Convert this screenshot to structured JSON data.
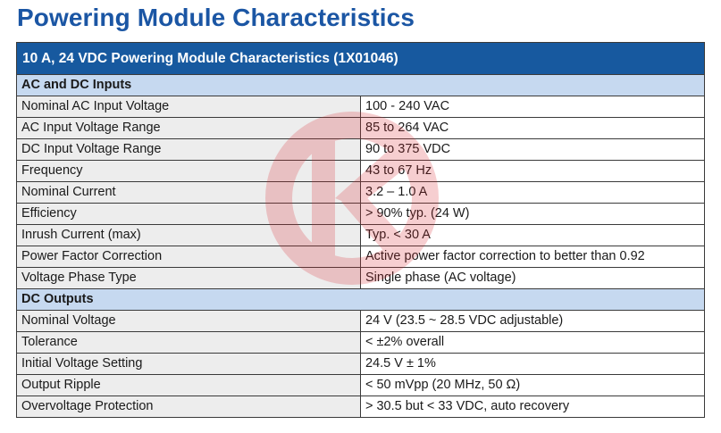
{
  "page_title": "Powering Module Characteristics",
  "table": {
    "title": "10 A, 24 VDC Powering Module Characteristics (1X01046)",
    "sections": [
      {
        "heading": "AC and DC Inputs",
        "rows": [
          {
            "parameter": "Nominal AC Input Voltage",
            "value": "100 - 240 VAC"
          },
          {
            "parameter": "AC Input Voltage Range",
            "value": "85 to 264 VAC"
          },
          {
            "parameter": "DC Input Voltage Range",
            "value": "90 to 375 VDC"
          },
          {
            "parameter": "Frequency",
            "value": "43 to 67 Hz"
          },
          {
            "parameter": "Nominal Current",
            "value": "3.2 – 1.0 A"
          },
          {
            "parameter": "Efficiency",
            "value": "> 90% typ. (24 W)"
          },
          {
            "parameter": "Inrush Current (max)",
            "value": "Typ. < 30 A"
          },
          {
            "parameter": "Power Factor Correction",
            "value": "Active power factor correction to better than 0.92"
          },
          {
            "parameter": "Voltage Phase Type",
            "value": "Single phase (AC voltage)"
          }
        ]
      },
      {
        "heading": "DC Outputs",
        "rows": [
          {
            "parameter": "Nominal Voltage",
            "value": "24 V (23.5 ~ 28.5 VDC adjustable)"
          },
          {
            "parameter": "Tolerance",
            "value": "< ±2% overall"
          },
          {
            "parameter": "Initial Voltage Setting",
            "value": "24.5 V ± 1%"
          },
          {
            "parameter": "Output Ripple",
            "value": "< 50 mVpp (20 MHz, 50 Ω)"
          },
          {
            "parameter": "Overvoltage Protection",
            "value": "> 30.5 but < 33 VDC, auto recovery"
          }
        ]
      }
    ]
  },
  "colors": {
    "title_blue": "#1b56a4",
    "header_bg": "#17599f",
    "section_bg": "#c6d9f0",
    "param_bg": "#ededed",
    "watermark": "#d9262c"
  },
  "watermark_icon": "watermark-logo-icon"
}
